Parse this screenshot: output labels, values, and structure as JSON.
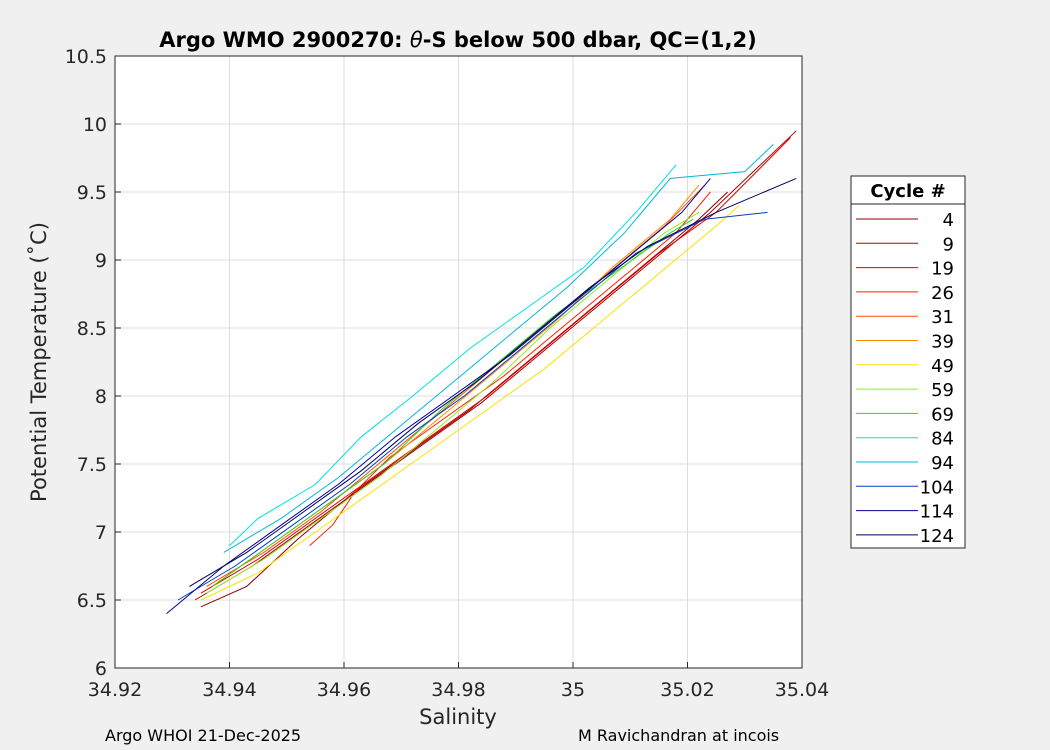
{
  "chart_data": {
    "type": "line",
    "title_prefix": "Argo WMO 2900270: ",
    "title_theta": "θ",
    "title_suffix": "-S below 500 dbar,  QC=(1,2)",
    "xlabel": "Salinity",
    "ylabel": "Potential Temperature (˚C)",
    "xlim": [
      34.92,
      35.04
    ],
    "ylim": [
      6,
      10.5
    ],
    "xticks": [
      "34.92",
      "34.94",
      "34.96",
      "34.98",
      "35",
      "35.02",
      "35.04"
    ],
    "yticks": [
      "6",
      "6.5",
      "7",
      "7.5",
      "8",
      "8.5",
      "9",
      "9.5",
      "10",
      "10.5"
    ],
    "grid": true,
    "legend_title": "Cycle #",
    "legend_position": "outside-right",
    "series": [
      {
        "name": "4",
        "color": "#8b0000",
        "x": [
          34.935,
          34.943,
          34.952,
          34.962,
          34.972,
          34.982,
          34.992,
          35.002,
          35.012,
          35.022,
          35.027
        ],
        "y": [
          6.45,
          6.6,
          6.95,
          7.3,
          7.6,
          7.9,
          8.25,
          8.6,
          8.95,
          9.3,
          9.5
        ]
      },
      {
        "name": "9",
        "color": "#b00000",
        "x": [
          34.934,
          34.944,
          34.954,
          34.964,
          34.974,
          34.984,
          34.994,
          35.004,
          35.014,
          35.024,
          35.039
        ],
        "y": [
          6.5,
          6.75,
          7.05,
          7.35,
          7.65,
          7.95,
          8.3,
          8.65,
          9.0,
          9.35,
          9.95
        ]
      },
      {
        "name": "19",
        "color": "#e00000",
        "x": [
          34.935,
          34.945,
          34.955,
          34.965,
          34.975,
          34.985,
          34.995,
          35.005,
          35.015,
          35.025,
          35.038
        ],
        "y": [
          6.55,
          6.8,
          7.1,
          7.4,
          7.7,
          8.0,
          8.35,
          8.7,
          9.05,
          9.35,
          9.9
        ]
      },
      {
        "name": "26",
        "color": "#ff2000",
        "x": [
          34.954,
          34.958,
          34.962,
          34.968,
          34.978,
          34.988,
          34.998,
          35.008,
          35.018,
          35.024
        ],
        "y": [
          6.9,
          7.05,
          7.3,
          7.55,
          7.85,
          8.15,
          8.5,
          8.85,
          9.2,
          9.5
        ]
      },
      {
        "name": "31",
        "color": "#ff5000",
        "x": [
          34.936,
          34.946,
          34.956,
          34.966,
          34.976,
          34.986,
          34.996,
          35.006,
          35.016,
          35.023
        ],
        "y": [
          6.6,
          6.85,
          7.15,
          7.5,
          7.85,
          8.2,
          8.55,
          8.9,
          9.25,
          9.55
        ]
      },
      {
        "name": "39",
        "color": "#ff8c00",
        "x": [
          34.937,
          34.947,
          34.957,
          34.967,
          34.977,
          34.987,
          34.997,
          35.007,
          35.017,
          35.022
        ],
        "y": [
          6.6,
          6.9,
          7.2,
          7.5,
          7.85,
          8.2,
          8.55,
          8.95,
          9.3,
          9.55
        ]
      },
      {
        "name": "49",
        "color": "#ffe000",
        "x": [
          34.935,
          34.945,
          34.955,
          34.965,
          34.975,
          34.985,
          34.995,
          35.005,
          35.015,
          35.025,
          35.029
        ],
        "y": [
          6.5,
          6.7,
          7.0,
          7.3,
          7.6,
          7.9,
          8.2,
          8.55,
          8.9,
          9.25,
          9.4
        ]
      },
      {
        "name": "59",
        "color": "#90ee20",
        "x": [
          34.936,
          34.946,
          34.956,
          34.966,
          34.976,
          34.986,
          34.996,
          35.006,
          35.016,
          35.022
        ],
        "y": [
          6.55,
          6.8,
          7.1,
          7.4,
          7.75,
          8.1,
          8.5,
          8.85,
          9.2,
          9.35
        ]
      },
      {
        "name": "69",
        "color": "#30d030",
        "x": [
          34.937,
          34.947,
          34.957,
          34.967,
          34.977,
          34.987,
          34.997,
          35.007,
          35.017,
          35.021
        ],
        "y": [
          6.6,
          6.9,
          7.2,
          7.5,
          7.9,
          8.25,
          8.6,
          8.9,
          9.2,
          9.3
        ]
      },
      {
        "name": "84",
        "color": "#00e0e0",
        "x": [
          34.94,
          34.945,
          34.955,
          34.963,
          34.972,
          34.982,
          34.992,
          35.002,
          35.011,
          35.018
        ],
        "y": [
          6.9,
          7.1,
          7.35,
          7.7,
          8.0,
          8.35,
          8.65,
          8.95,
          9.35,
          9.7
        ]
      },
      {
        "name": "94",
        "color": "#00b8d8",
        "x": [
          34.939,
          34.949,
          34.959,
          34.969,
          34.979,
          34.989,
          34.999,
          35.009,
          35.017,
          35.03,
          35.035
        ],
        "y": [
          6.85,
          7.1,
          7.4,
          7.75,
          8.1,
          8.45,
          8.8,
          9.2,
          9.6,
          9.65,
          9.85
        ]
      },
      {
        "name": "104",
        "color": "#0040c0",
        "x": [
          34.931,
          34.941,
          34.951,
          34.961,
          34.971,
          34.981,
          34.991,
          35.001,
          35.011,
          35.023,
          35.034
        ],
        "y": [
          6.5,
          6.75,
          7.05,
          7.35,
          7.7,
          8.0,
          8.35,
          8.7,
          9.05,
          9.3,
          9.35
        ]
      },
      {
        "name": "114",
        "color": "#0000a0",
        "x": [
          34.929,
          34.939,
          34.949,
          34.959,
          34.969,
          34.979,
          34.989,
          34.999,
          35.009,
          35.019,
          35.024
        ],
        "y": [
          6.4,
          6.75,
          7.05,
          7.35,
          7.7,
          8.0,
          8.3,
          8.65,
          9.0,
          9.35,
          9.6
        ]
      },
      {
        "name": "124",
        "color": "#00005a",
        "x": [
          34.933,
          34.943,
          34.953,
          34.963,
          34.973,
          34.983,
          34.993,
          35.003,
          35.013,
          35.025,
          35.039
        ],
        "y": [
          6.6,
          6.85,
          7.15,
          7.45,
          7.8,
          8.1,
          8.45,
          8.8,
          9.1,
          9.35,
          9.6
        ]
      }
    ]
  },
  "footer": {
    "left": "Argo WHOI 21-Dec-2025",
    "right": "M Ravichandran at incois"
  }
}
